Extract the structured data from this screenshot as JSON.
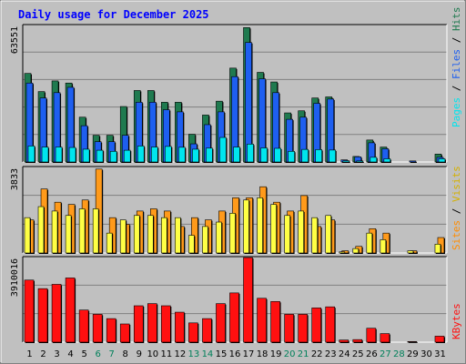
{
  "chart_data": [
    {
      "type": "bar",
      "title": "Daily usage for December 2025",
      "categories": [
        "1",
        "2",
        "3",
        "4",
        "5",
        "6",
        "7",
        "8",
        "9",
        "10",
        "11",
        "12",
        "13",
        "14",
        "15",
        "16",
        "17",
        "18",
        "19",
        "20",
        "21",
        "22",
        "23",
        "24",
        "25",
        "26",
        "27",
        "28",
        "29",
        "30",
        "31"
      ],
      "weekend_days": [
        "6",
        "7",
        "13",
        "14",
        "20",
        "21",
        "27",
        "28"
      ],
      "y_label_top": "63551",
      "ylim": [
        0,
        63551
      ],
      "legend": [
        "Pages",
        "Files",
        "Hits"
      ],
      "series": [
        {
          "name": "Hits",
          "color": "#1f7a4f",
          "values": [
            41500,
            33000,
            38000,
            37000,
            21000,
            12500,
            12500,
            26000,
            33500,
            33500,
            28000,
            28000,
            13000,
            22000,
            28500,
            44000,
            63000,
            42000,
            37500,
            23000,
            24000,
            30000,
            30500,
            0,
            2600,
            10300,
            7000,
            0,
            0,
            0,
            3700
          ]
        },
        {
          "name": "Files",
          "color": "#1e5ff0",
          "values": [
            37000,
            30000,
            32500,
            35000,
            17000,
            9500,
            9500,
            12500,
            28000,
            28000,
            24500,
            23500,
            8500,
            17500,
            23500,
            40000,
            56000,
            39000,
            32500,
            20000,
            21000,
            27500,
            29500,
            1000,
            2400,
            9000,
            6200,
            0,
            500,
            0,
            2200
          ]
        },
        {
          "name": "Pages",
          "color": "#00e5ee",
          "values": [
            7500,
            7000,
            7000,
            6800,
            6000,
            5500,
            5000,
            5500,
            7500,
            7000,
            7300,
            6900,
            6000,
            6500,
            11500,
            7000,
            8400,
            6600,
            6400,
            5000,
            5900,
            5800,
            5600,
            600,
            500,
            2200,
            1500,
            0,
            0,
            0,
            1500
          ]
        }
      ]
    },
    {
      "type": "bar",
      "categories": [
        "1",
        "2",
        "3",
        "4",
        "5",
        "6",
        "7",
        "8",
        "9",
        "10",
        "11",
        "12",
        "13",
        "14",
        "15",
        "16",
        "17",
        "18",
        "19",
        "20",
        "21",
        "22",
        "23",
        "24",
        "25",
        "26",
        "27",
        "28",
        "29",
        "30",
        "31"
      ],
      "y_label_top": "3833",
      "ylim": [
        0,
        3833
      ],
      "legend": [
        "Sites",
        "Visits"
      ],
      "series": [
        {
          "name": "Visits",
          "color": "#ff9a1a",
          "values": [
            1500,
            2900,
            2300,
            2200,
            2400,
            3800,
            1600,
            1300,
            1900,
            2000,
            1900,
            1200,
            1600,
            1500,
            1900,
            2500,
            2500,
            3000,
            2300,
            1900,
            2600,
            1200,
            1500,
            100,
            300,
            1100,
            900,
            0,
            100,
            0,
            700
          ]
        },
        {
          "name": "Sites",
          "color": "#ffff44",
          "values": [
            1600,
            2100,
            1900,
            1700,
            2000,
            2000,
            900,
            1500,
            1700,
            1700,
            1600,
            1600,
            800,
            1200,
            1400,
            1800,
            2400,
            2500,
            2200,
            1700,
            1900,
            1600,
            1700,
            50,
            200,
            900,
            600,
            0,
            100,
            0,
            400
          ]
        }
      ]
    },
    {
      "type": "bar",
      "categories": [
        "1",
        "2",
        "3",
        "4",
        "5",
        "6",
        "7",
        "8",
        "9",
        "10",
        "11",
        "12",
        "13",
        "14",
        "15",
        "16",
        "17",
        "18",
        "19",
        "20",
        "21",
        "22",
        "23",
        "24",
        "25",
        "26",
        "27",
        "28",
        "29",
        "30",
        "31"
      ],
      "y_label_top": "3910016",
      "ylim": [
        0,
        3910016
      ],
      "legend": [
        "KBytes"
      ],
      "series": [
        {
          "name": "KBytes",
          "color": "#ff1010",
          "values": [
            2900000,
            2500000,
            2700000,
            3000000,
            1500000,
            1300000,
            1100000,
            850000,
            1700000,
            1800000,
            1700000,
            1400000,
            900000,
            1100000,
            1800000,
            2300000,
            3950000,
            2050000,
            1900000,
            1300000,
            1300000,
            1600000,
            1650000,
            100000,
            120000,
            650000,
            400000,
            0,
            30000,
            0,
            280000
          ]
        }
      ]
    }
  ]
}
